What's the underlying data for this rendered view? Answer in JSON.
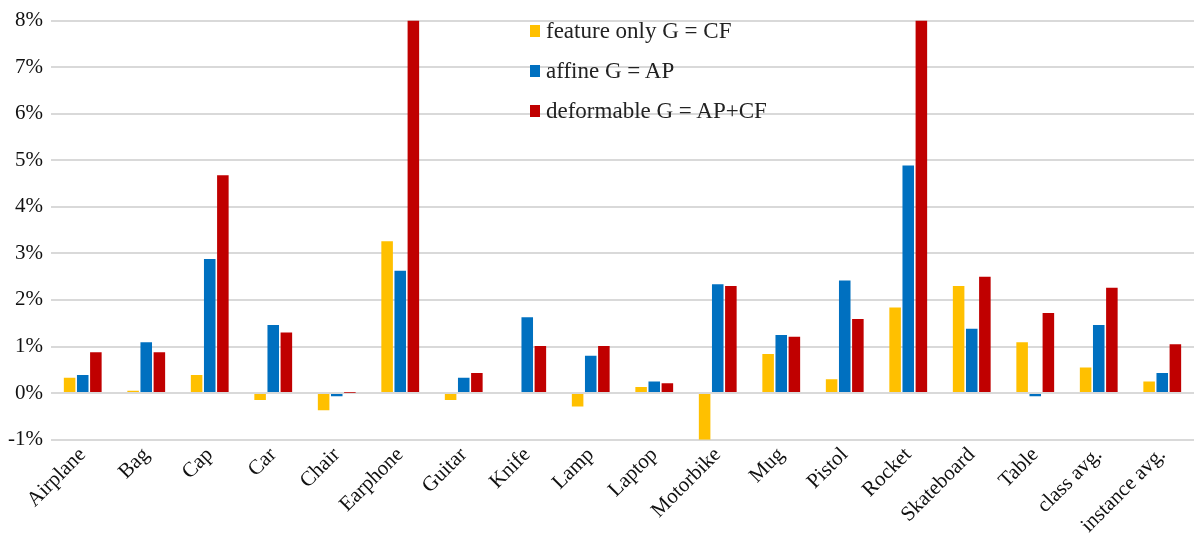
{
  "chart_data": {
    "type": "bar",
    "categories": [
      "Airplane",
      "Bag",
      "Cap",
      "Car",
      "Chair",
      "Earphone",
      "Guitar",
      "Knife",
      "Lamp",
      "Laptop",
      "Motorbike",
      "Mug",
      "Pistol",
      "Rocket",
      "Skateboard",
      "Table",
      "class avg.",
      "instance avg."
    ],
    "series": [
      {
        "name": "feature only G = CF",
        "color": "#ffc000",
        "values": [
          0.33,
          0.05,
          0.39,
          -0.15,
          -0.37,
          3.26,
          -0.15,
          0,
          -0.29,
          0.13,
          -1.0,
          0.84,
          0.3,
          1.84,
          2.3,
          1.09,
          0.55,
          0.25
        ]
      },
      {
        "name": "affine G = AP",
        "color": "#0070c0",
        "values": [
          0.39,
          1.09,
          2.88,
          1.46,
          -0.07,
          2.63,
          0.33,
          1.63,
          0.8,
          0.25,
          2.34,
          1.25,
          2.42,
          4.89,
          1.38,
          -0.07,
          1.46,
          0.43
        ]
      },
      {
        "name": "deformable G = AP+CF",
        "color": "#c00000",
        "values": [
          0.88,
          0.88,
          4.68,
          1.3,
          0.01,
          8,
          0.43,
          1.01,
          1.01,
          0.21,
          2.3,
          1.21,
          1.59,
          8,
          2.5,
          1.72,
          2.26,
          1.05
        ]
      }
    ],
    "ylim": [
      -1,
      8
    ],
    "yticks": [
      {
        "value": -1,
        "label": "-1%"
      },
      {
        "value": 0,
        "label": "0%"
      },
      {
        "value": 1,
        "label": "1%"
      },
      {
        "value": 2,
        "label": "2%"
      },
      {
        "value": 3,
        "label": "3%"
      },
      {
        "value": 4,
        "label": "4%"
      },
      {
        "value": 5,
        "label": "5%"
      },
      {
        "value": 6,
        "label": "6%"
      },
      {
        "value": 7,
        "label": "7%"
      },
      {
        "value": 8,
        "label": "8%"
      }
    ],
    "grid": "y",
    "legend": "top"
  }
}
